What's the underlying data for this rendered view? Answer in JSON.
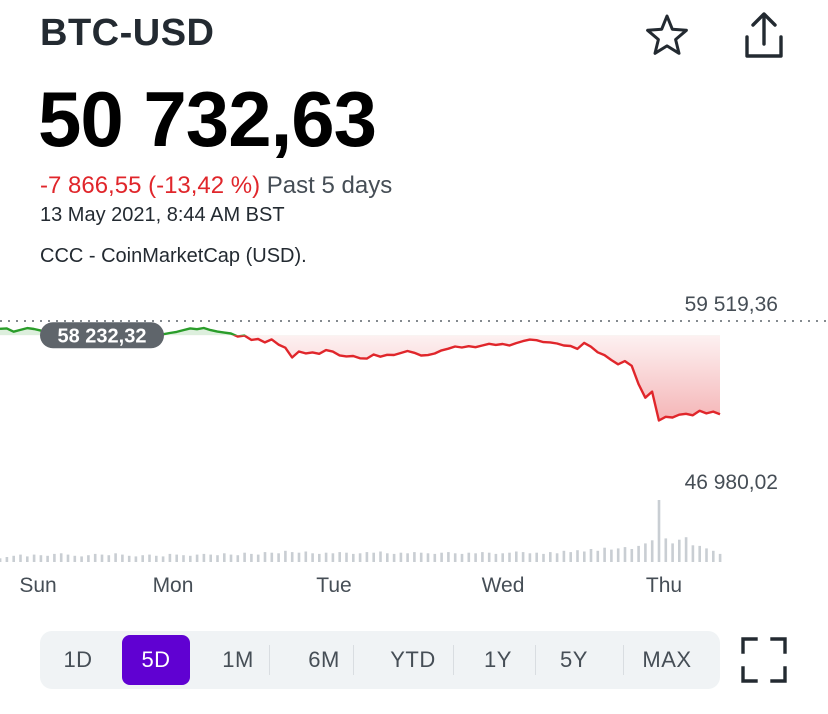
{
  "header": {
    "symbol": "BTC-USD",
    "price": "50 732,63",
    "change": "-7 866,55 (-13,42 %)",
    "period": "Past 5 days",
    "timestamp": "13 May 2021, 8:44 AM BST",
    "source": "CCC - CoinMarketCap (USD)."
  },
  "icons": {
    "watchlist": "star-icon",
    "share": "share-icon",
    "fullscreen": "fullscreen-icon"
  },
  "colors": {
    "down": "#e0262b",
    "up": "#2a9d2a",
    "accent": "#6001d2",
    "badge": "#5f656b"
  },
  "chart_data": {
    "type": "line",
    "previous_close": 58232.32,
    "previous_close_label": "58 232,32",
    "high_label": "59 519,36",
    "low_label": "46 980,02",
    "x_labels": [
      "Sun",
      "Mon",
      "Tue",
      "Wed",
      "Thu"
    ],
    "ylim": [
      46980.02,
      59519.36
    ],
    "series": [
      {
        "values": [
          58820,
          58850,
          58550,
          58720,
          58880,
          58800,
          58650,
          58580,
          58420,
          58270,
          58200,
          58050,
          58150,
          57810,
          57710,
          57960,
          57930,
          58180,
          58100,
          57990,
          58170,
          58250,
          58100,
          58000,
          58320,
          58440,
          58540,
          58700,
          58850,
          58780,
          58890,
          58700,
          58560,
          58470,
          58390,
          58120,
          58200,
          57810,
          57900,
          57590,
          57860,
          57390,
          57110,
          56230,
          56770,
          56600,
          56690,
          56560,
          56890,
          56760,
          56420,
          56330,
          56360,
          56150,
          56130,
          56500,
          56300,
          56470,
          56450,
          56630,
          56810,
          56650,
          56410,
          56440,
          56590,
          56870,
          57020,
          57220,
          57130,
          57250,
          57160,
          57310,
          57460,
          57360,
          57440,
          57310,
          57530,
          57710,
          57840,
          57790,
          57620,
          57590,
          57490,
          57310,
          57260,
          57000,
          57540,
          57200,
          56700,
          56440,
          56000,
          55610,
          55900,
          55480,
          53840,
          52600,
          53150,
          50540,
          50880,
          50810,
          51070,
          51150,
          51010,
          51420,
          51180,
          51350,
          51100
        ],
        "volumes": [
          0.06,
          0.08,
          0.1,
          0.12,
          0.09,
          0.12,
          0.11,
          0.1,
          0.13,
          0.14,
          0.12,
          0.1,
          0.09,
          0.11,
          0.13,
          0.12,
          0.11,
          0.14,
          0.12,
          0.1,
          0.09,
          0.11,
          0.12,
          0.1,
          0.09,
          0.13,
          0.12,
          0.11,
          0.1,
          0.12,
          0.13,
          0.12,
          0.11,
          0.14,
          0.12,
          0.11,
          0.15,
          0.13,
          0.12,
          0.16,
          0.15,
          0.14,
          0.18,
          0.16,
          0.15,
          0.17,
          0.14,
          0.13,
          0.15,
          0.14,
          0.16,
          0.15,
          0.13,
          0.14,
          0.16,
          0.15,
          0.17,
          0.14,
          0.13,
          0.15,
          0.14,
          0.16,
          0.15,
          0.14,
          0.13,
          0.15,
          0.16,
          0.14,
          0.13,
          0.15,
          0.14,
          0.16,
          0.15,
          0.13,
          0.14,
          0.15,
          0.17,
          0.16,
          0.14,
          0.15,
          0.13,
          0.16,
          0.14,
          0.18,
          0.16,
          0.19,
          0.17,
          0.21,
          0.18,
          0.23,
          0.2,
          0.22,
          0.24,
          0.21,
          0.26,
          0.3,
          0.35,
          1.0,
          0.38,
          0.3,
          0.36,
          0.4,
          0.27,
          0.26,
          0.22,
          0.18,
          0.13
        ]
      }
    ]
  },
  "ranges": [
    "1D",
    "5D",
    "1M",
    "6M",
    "YTD",
    "1Y",
    "5Y",
    "MAX"
  ],
  "active_range": "5D"
}
